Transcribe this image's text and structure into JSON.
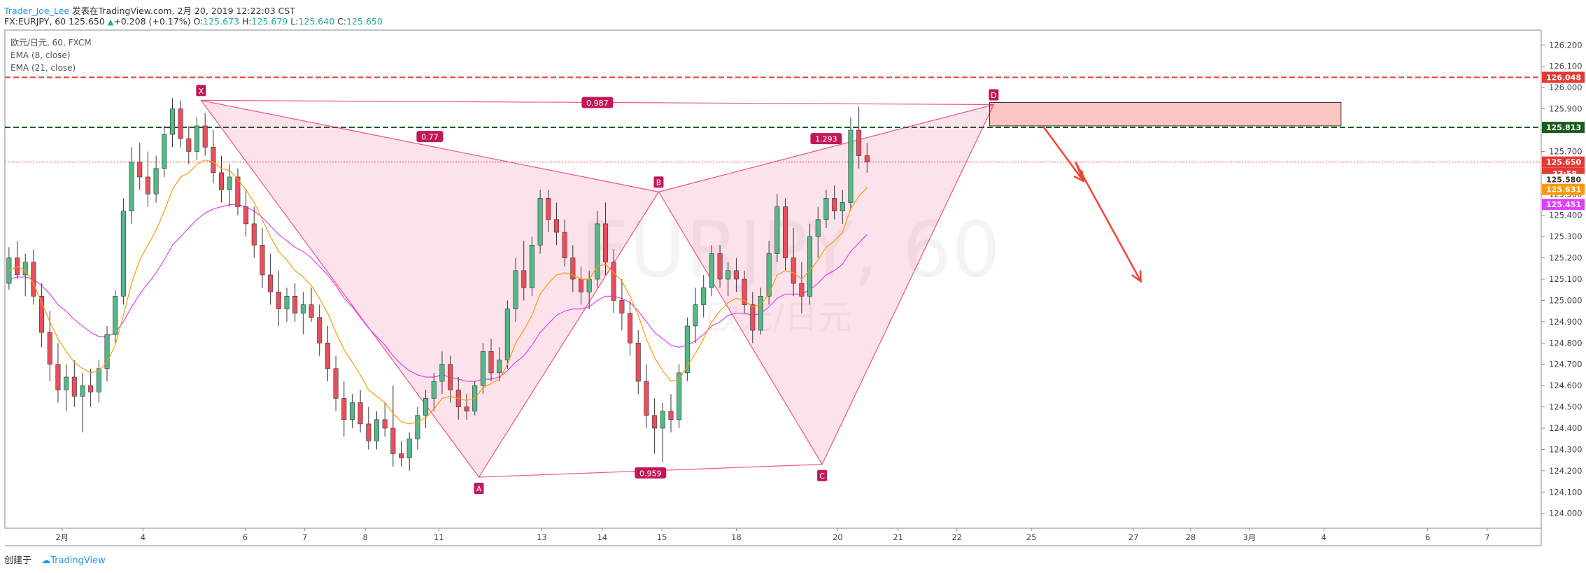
{
  "header": {
    "author": "Trader_Joe_Lee",
    "published": "发表在TradingView.com, 2月 20, 2019 12:22:03 CST",
    "symbol_line": "FX:EURJPY, 60",
    "last": "125.650",
    "change": "+0.208 (+0.17%)",
    "o_label": "O:",
    "o_val": "125.673",
    "h_label": "H:",
    "h_val": "125.679",
    "l_label": "L:",
    "l_val": "125.640",
    "c_label": "C:",
    "c_val": "125.650"
  },
  "legend": [
    "欧元/日元, 60, FXCM",
    "EMA (8, close)",
    "EMA (21, close)"
  ],
  "watermark": {
    "big": "EURJPY, 60",
    "small": "欧元/日元"
  },
  "footer": {
    "created": "创建于",
    "brand": "TradingView"
  },
  "colors": {
    "up": "#53b987",
    "down": "#eb4d5c",
    "ema8": "#ff9800",
    "ema21": "#e040fb",
    "pattern": "#e91e63",
    "pattern_fill": "rgba(233,30,99,0.13)",
    "red_line": "#e53935",
    "green_line": "#1b5e20",
    "box_fill": "rgba(244,67,54,0.3)",
    "arrow": "#f44336",
    "pattern_label_bg": "#c2185b"
  },
  "chart_data": {
    "type": "candlestick",
    "instrument": "FX:EURJPY",
    "timeframe": "60",
    "ylim": [
      123.93,
      126.27
    ],
    "y_ticks": [
      "126.200",
      "126.100",
      "126.000",
      "125.900",
      "125.800",
      "125.700",
      "125.600",
      "125.500",
      "125.400",
      "125.300",
      "125.200",
      "125.100",
      "125.000",
      "124.900",
      "124.800",
      "124.700",
      "124.600",
      "124.500",
      "124.400",
      "124.300",
      "124.200",
      "124.100",
      "124.000"
    ],
    "x_ticks": [
      "2月",
      "4",
      "6",
      "7",
      "8",
      "11",
      "13",
      "14",
      "15",
      "18",
      "20",
      "21",
      "22",
      "25",
      "27",
      "28",
      "3月",
      "4",
      "6",
      "7"
    ],
    "x_tick_slots": [
      6.5,
      16.4,
      28.9,
      36.2,
      43.6,
      52.6,
      65.2,
      72.6,
      79.9,
      89.0,
      101.4,
      108.8,
      116.0,
      125.1,
      137.6,
      144.6,
      151.8,
      160.9,
      173.6,
      180.9
    ],
    "total_slots": 188,
    "candles": [
      {
        "o": 125.08,
        "h": 125.25,
        "l": 125.05,
        "c": 125.2
      },
      {
        "o": 125.2,
        "h": 125.28,
        "l": 125.1,
        "c": 125.12
      },
      {
        "o": 125.12,
        "h": 125.22,
        "l": 125.02,
        "c": 125.18
      },
      {
        "o": 125.18,
        "h": 125.24,
        "l": 124.98,
        "c": 125.02
      },
      {
        "o": 125.02,
        "h": 125.08,
        "l": 124.78,
        "c": 124.85
      },
      {
        "o": 124.85,
        "h": 124.95,
        "l": 124.62,
        "c": 124.7
      },
      {
        "o": 124.7,
        "h": 124.8,
        "l": 124.52,
        "c": 124.58
      },
      {
        "o": 124.58,
        "h": 124.7,
        "l": 124.48,
        "c": 124.64
      },
      {
        "o": 124.64,
        "h": 124.72,
        "l": 124.5,
        "c": 124.55
      },
      {
        "o": 124.55,
        "h": 124.66,
        "l": 124.38,
        "c": 124.6
      },
      {
        "o": 124.6,
        "h": 124.68,
        "l": 124.5,
        "c": 124.57
      },
      {
        "o": 124.57,
        "h": 124.72,
        "l": 124.52,
        "c": 124.68
      },
      {
        "o": 124.68,
        "h": 124.88,
        "l": 124.62,
        "c": 124.84
      },
      {
        "o": 124.84,
        "h": 125.05,
        "l": 124.8,
        "c": 125.02
      },
      {
        "o": 125.02,
        "h": 125.48,
        "l": 124.98,
        "c": 125.42
      },
      {
        "o": 125.42,
        "h": 125.72,
        "l": 125.36,
        "c": 125.65
      },
      {
        "o": 125.65,
        "h": 125.74,
        "l": 125.52,
        "c": 125.58
      },
      {
        "o": 125.58,
        "h": 125.7,
        "l": 125.44,
        "c": 125.5
      },
      {
        "o": 125.5,
        "h": 125.68,
        "l": 125.46,
        "c": 125.62
      },
      {
        "o": 125.62,
        "h": 125.82,
        "l": 125.58,
        "c": 125.78
      },
      {
        "o": 125.78,
        "h": 125.95,
        "l": 125.72,
        "c": 125.9
      },
      {
        "o": 125.9,
        "h": 125.94,
        "l": 125.72,
        "c": 125.76
      },
      {
        "o": 125.76,
        "h": 125.82,
        "l": 125.64,
        "c": 125.7
      },
      {
        "o": 125.7,
        "h": 125.86,
        "l": 125.66,
        "c": 125.82
      },
      {
        "o": 125.82,
        "h": 125.88,
        "l": 125.68,
        "c": 125.72
      },
      {
        "o": 125.72,
        "h": 125.8,
        "l": 125.55,
        "c": 125.6
      },
      {
        "o": 125.6,
        "h": 125.68,
        "l": 125.46,
        "c": 125.52
      },
      {
        "o": 125.52,
        "h": 125.64,
        "l": 125.44,
        "c": 125.58
      },
      {
        "o": 125.58,
        "h": 125.62,
        "l": 125.4,
        "c": 125.44
      },
      {
        "o": 125.44,
        "h": 125.52,
        "l": 125.3,
        "c": 125.36
      },
      {
        "o": 125.36,
        "h": 125.44,
        "l": 125.2,
        "c": 125.26
      },
      {
        "o": 125.26,
        "h": 125.34,
        "l": 125.06,
        "c": 125.12
      },
      {
        "o": 125.12,
        "h": 125.22,
        "l": 124.98,
        "c": 125.04
      },
      {
        "o": 125.04,
        "h": 125.14,
        "l": 124.88,
        "c": 124.96
      },
      {
        "o": 124.96,
        "h": 125.06,
        "l": 124.9,
        "c": 125.02
      },
      {
        "o": 125.02,
        "h": 125.08,
        "l": 124.9,
        "c": 124.94
      },
      {
        "o": 124.94,
        "h": 125.04,
        "l": 124.84,
        "c": 124.98
      },
      {
        "o": 124.98,
        "h": 125.06,
        "l": 124.9,
        "c": 124.92
      },
      {
        "o": 124.92,
        "h": 124.98,
        "l": 124.74,
        "c": 124.8
      },
      {
        "o": 124.8,
        "h": 124.88,
        "l": 124.62,
        "c": 124.68
      },
      {
        "o": 124.68,
        "h": 124.74,
        "l": 124.48,
        "c": 124.54
      },
      {
        "o": 124.54,
        "h": 124.62,
        "l": 124.36,
        "c": 124.44
      },
      {
        "o": 124.44,
        "h": 124.56,
        "l": 124.4,
        "c": 124.52
      },
      {
        "o": 124.52,
        "h": 124.58,
        "l": 124.38,
        "c": 124.42
      },
      {
        "o": 124.42,
        "h": 124.5,
        "l": 124.3,
        "c": 124.34
      },
      {
        "o": 124.34,
        "h": 124.48,
        "l": 124.3,
        "c": 124.44
      },
      {
        "o": 124.44,
        "h": 124.52,
        "l": 124.36,
        "c": 124.4
      },
      {
        "o": 124.4,
        "h": 124.6,
        "l": 124.22,
        "c": 124.28
      },
      {
        "o": 124.28,
        "h": 124.34,
        "l": 124.22,
        "c": 124.26
      },
      {
        "o": 124.26,
        "h": 124.38,
        "l": 124.2,
        "c": 124.35
      },
      {
        "o": 124.35,
        "h": 124.5,
        "l": 124.3,
        "c": 124.46
      },
      {
        "o": 124.46,
        "h": 124.58,
        "l": 124.4,
        "c": 124.54
      },
      {
        "o": 124.54,
        "h": 124.66,
        "l": 124.48,
        "c": 124.62
      },
      {
        "o": 124.62,
        "h": 124.76,
        "l": 124.56,
        "c": 124.7
      },
      {
        "o": 124.7,
        "h": 124.74,
        "l": 124.52,
        "c": 124.58
      },
      {
        "o": 124.58,
        "h": 124.64,
        "l": 124.44,
        "c": 124.5
      },
      {
        "o": 124.5,
        "h": 124.56,
        "l": 124.44,
        "c": 124.48
      },
      {
        "o": 124.48,
        "h": 124.62,
        "l": 124.46,
        "c": 124.6
      },
      {
        "o": 124.6,
        "h": 124.8,
        "l": 124.56,
        "c": 124.76
      },
      {
        "o": 124.76,
        "h": 124.82,
        "l": 124.62,
        "c": 124.66
      },
      {
        "o": 124.66,
        "h": 124.78,
        "l": 124.62,
        "c": 124.72
      },
      {
        "o": 124.72,
        "h": 125.0,
        "l": 124.68,
        "c": 124.96
      },
      {
        "o": 124.96,
        "h": 125.2,
        "l": 124.9,
        "c": 125.14
      },
      {
        "o": 125.14,
        "h": 125.28,
        "l": 125.0,
        "c": 125.06
      },
      {
        "o": 125.06,
        "h": 125.3,
        "l": 125.02,
        "c": 125.26
      },
      {
        "o": 125.26,
        "h": 125.52,
        "l": 125.22,
        "c": 125.48
      },
      {
        "o": 125.48,
        "h": 125.52,
        "l": 125.32,
        "c": 125.38
      },
      {
        "o": 125.38,
        "h": 125.46,
        "l": 125.26,
        "c": 125.32
      },
      {
        "o": 125.32,
        "h": 125.38,
        "l": 125.16,
        "c": 125.2
      },
      {
        "o": 125.2,
        "h": 125.26,
        "l": 125.04,
        "c": 125.1
      },
      {
        "o": 125.1,
        "h": 125.16,
        "l": 124.98,
        "c": 125.04
      },
      {
        "o": 125.04,
        "h": 125.14,
        "l": 124.96,
        "c": 125.1
      },
      {
        "o": 125.1,
        "h": 125.42,
        "l": 125.06,
        "c": 125.36
      },
      {
        "o": 125.36,
        "h": 125.46,
        "l": 125.12,
        "c": 125.18
      },
      {
        "o": 125.18,
        "h": 125.24,
        "l": 124.94,
        "c": 125.0
      },
      {
        "o": 125.0,
        "h": 125.1,
        "l": 124.86,
        "c": 124.94
      },
      {
        "o": 124.94,
        "h": 125.0,
        "l": 124.74,
        "c": 124.8
      },
      {
        "o": 124.8,
        "h": 124.86,
        "l": 124.56,
        "c": 124.62
      },
      {
        "o": 124.62,
        "h": 124.7,
        "l": 124.4,
        "c": 124.46
      },
      {
        "o": 124.46,
        "h": 124.54,
        "l": 124.28,
        "c": 124.4
      },
      {
        "o": 124.4,
        "h": 124.52,
        "l": 124.24,
        "c": 124.48
      },
      {
        "o": 124.48,
        "h": 124.56,
        "l": 124.38,
        "c": 124.44
      },
      {
        "o": 124.44,
        "h": 124.7,
        "l": 124.4,
        "c": 124.66
      },
      {
        "o": 124.66,
        "h": 124.92,
        "l": 124.62,
        "c": 124.88
      },
      {
        "o": 124.88,
        "h": 125.06,
        "l": 124.8,
        "c": 124.98
      },
      {
        "o": 124.98,
        "h": 125.12,
        "l": 124.92,
        "c": 125.06
      },
      {
        "o": 125.06,
        "h": 125.26,
        "l": 125.02,
        "c": 125.22
      },
      {
        "o": 125.22,
        "h": 125.26,
        "l": 125.06,
        "c": 125.1
      },
      {
        "o": 125.1,
        "h": 125.18,
        "l": 125.02,
        "c": 125.14
      },
      {
        "o": 125.14,
        "h": 125.2,
        "l": 125.04,
        "c": 125.1
      },
      {
        "o": 125.1,
        "h": 125.14,
        "l": 124.94,
        "c": 124.98
      },
      {
        "o": 124.98,
        "h": 125.04,
        "l": 124.8,
        "c": 124.86
      },
      {
        "o": 124.86,
        "h": 125.06,
        "l": 124.84,
        "c": 125.02
      },
      {
        "o": 125.02,
        "h": 125.28,
        "l": 124.98,
        "c": 125.22
      },
      {
        "o": 125.22,
        "h": 125.5,
        "l": 125.18,
        "c": 125.44
      },
      {
        "o": 125.44,
        "h": 125.48,
        "l": 125.14,
        "c": 125.2
      },
      {
        "o": 125.2,
        "h": 125.34,
        "l": 125.02,
        "c": 125.08
      },
      {
        "o": 125.08,
        "h": 125.18,
        "l": 124.94,
        "c": 125.02
      },
      {
        "o": 125.02,
        "h": 125.36,
        "l": 124.98,
        "c": 125.3
      },
      {
        "o": 125.3,
        "h": 125.44,
        "l": 125.2,
        "c": 125.38
      },
      {
        "o": 125.38,
        "h": 125.52,
        "l": 125.34,
        "c": 125.48
      },
      {
        "o": 125.48,
        "h": 125.54,
        "l": 125.38,
        "c": 125.42
      },
      {
        "o": 125.42,
        "h": 125.52,
        "l": 125.36,
        "c": 125.46
      },
      {
        "o": 125.46,
        "h": 125.86,
        "l": 125.42,
        "c": 125.8
      },
      {
        "o": 125.8,
        "h": 125.91,
        "l": 125.62,
        "c": 125.68
      },
      {
        "o": 125.68,
        "h": 125.74,
        "l": 125.6,
        "c": 125.65
      }
    ],
    "ema8": [
      125.14,
      125.16,
      125.14,
      125.08,
      124.99,
      124.9,
      124.82,
      124.76,
      124.71,
      124.68,
      124.66,
      124.67,
      124.71,
      124.79,
      124.93,
      125.08,
      125.19,
      125.26,
      125.33,
      125.42,
      125.52,
      125.58,
      125.6,
      125.64,
      125.66,
      125.65,
      125.62,
      125.61,
      125.57,
      125.52,
      125.46,
      125.38,
      125.3,
      125.23,
      125.19,
      125.14,
      125.11,
      125.07,
      125.01,
      124.94,
      124.85,
      124.77,
      124.71,
      124.65,
      124.58,
      124.55,
      124.52,
      124.47,
      124.43,
      124.42,
      124.43,
      124.45,
      124.49,
      124.54,
      124.55,
      124.54,
      124.53,
      124.54,
      124.59,
      124.61,
      124.63,
      124.7,
      124.8,
      124.86,
      124.93,
      125.03,
      125.08,
      125.12,
      125.13,
      125.12,
      125.1,
      125.1,
      125.16,
      125.17,
      125.13,
      125.09,
      125.02,
      124.93,
      124.82,
      124.73,
      124.67,
      124.62,
      124.63,
      124.69,
      124.75,
      124.82,
      124.9,
      124.95,
      124.99,
      125.01,
      125.0,
      124.97,
      124.98,
      125.03,
      125.12,
      125.14,
      125.13,
      125.1,
      125.14,
      125.19,
      125.25,
      125.28,
      125.32,
      125.43,
      125.49,
      125.53
    ],
    "ema21": [
      125.1,
      125.11,
      125.11,
      125.1,
      125.07,
      125.03,
      124.98,
      124.95,
      124.91,
      124.88,
      124.85,
      124.83,
      124.83,
      124.85,
      124.9,
      124.97,
      125.03,
      125.08,
      125.13,
      125.19,
      125.26,
      125.3,
      125.34,
      125.38,
      125.41,
      125.43,
      125.44,
      125.45,
      125.45,
      125.44,
      125.42,
      125.39,
      125.35,
      125.31,
      125.28,
      125.25,
      125.23,
      125.2,
      125.16,
      125.12,
      125.07,
      125.01,
      124.97,
      124.92,
      124.87,
      124.83,
      124.79,
      124.74,
      124.7,
      124.67,
      124.65,
      124.64,
      124.64,
      124.65,
      124.64,
      124.63,
      124.62,
      124.62,
      124.63,
      124.63,
      124.64,
      124.67,
      124.71,
      124.74,
      124.79,
      124.85,
      124.89,
      124.93,
      124.95,
      124.96,
      124.96,
      124.97,
      125.0,
      125.02,
      125.02,
      125.01,
      124.99,
      124.95,
      124.9,
      124.85,
      124.82,
      124.79,
      124.78,
      124.79,
      124.81,
      124.84,
      124.88,
      124.9,
      124.93,
      124.94,
      124.94,
      124.93,
      124.94,
      124.97,
      125.01,
      125.03,
      125.03,
      125.03,
      125.05,
      125.08,
      125.12,
      125.14,
      125.17,
      125.23,
      125.27,
      125.31
    ],
    "levels": [
      {
        "value": 126.048,
        "label": "126.048",
        "style": "dashed",
        "color": "#e53935"
      },
      {
        "value": 125.813,
        "label": "125.813",
        "style": "dashed",
        "color": "#1b5e20"
      },
      {
        "value": 125.65,
        "label": "125.650",
        "style": "dotted",
        "color": "#e53935"
      }
    ],
    "price_tags": [
      {
        "value": 125.65,
        "label": "125.650",
        "bg": "#e53935",
        "fg": "#ffffff"
      },
      {
        "value": 125.597,
        "label": "37:58",
        "bg": "#e53935",
        "fg": "#ffffff"
      },
      {
        "value": 125.548,
        "label": "125.580",
        "bg": "#ffffff",
        "fg": "#333333"
      },
      {
        "value": 125.548,
        "label": "125.631",
        "bg": "#ff9800",
        "fg": "#ffffff"
      },
      {
        "value": 125.451,
        "label": "125.451",
        "bg": "#e040fb",
        "fg": "#ffffff"
      }
    ],
    "pattern": {
      "points": [
        {
          "name": "X",
          "slot": 23.5,
          "price": 125.94
        },
        {
          "name": "A",
          "slot": 57.5,
          "price": 124.17
        },
        {
          "name": "B",
          "slot": 79.5,
          "price": 125.51
        },
        {
          "name": "C",
          "slot": 99.5,
          "price": 124.23
        },
        {
          "name": "D",
          "slot": 120.5,
          "price": 125.92
        }
      ],
      "ratios": [
        {
          "label": "0.77",
          "slot": 51.5,
          "price": 125.77
        },
        {
          "label": "0.959",
          "slot": 78.5,
          "price": 124.19
        },
        {
          "label": "1.293",
          "slot": 100.0,
          "price": 125.76
        },
        {
          "label": "0.987",
          "slot": 72.0,
          "price": 125.93
        }
      ]
    },
    "zone": {
      "slot_from": 120.0,
      "slot_to": 163.0,
      "price_from": 125.82,
      "price_to": 125.93
    },
    "arrow_path": [
      {
        "slot": 126.5,
        "price": 125.82
      },
      {
        "slot": 131.5,
        "price": 125.56
      },
      {
        "slot": 130.5,
        "price": 125.65
      },
      {
        "slot": 138.5,
        "price": 125.09
      }
    ]
  }
}
